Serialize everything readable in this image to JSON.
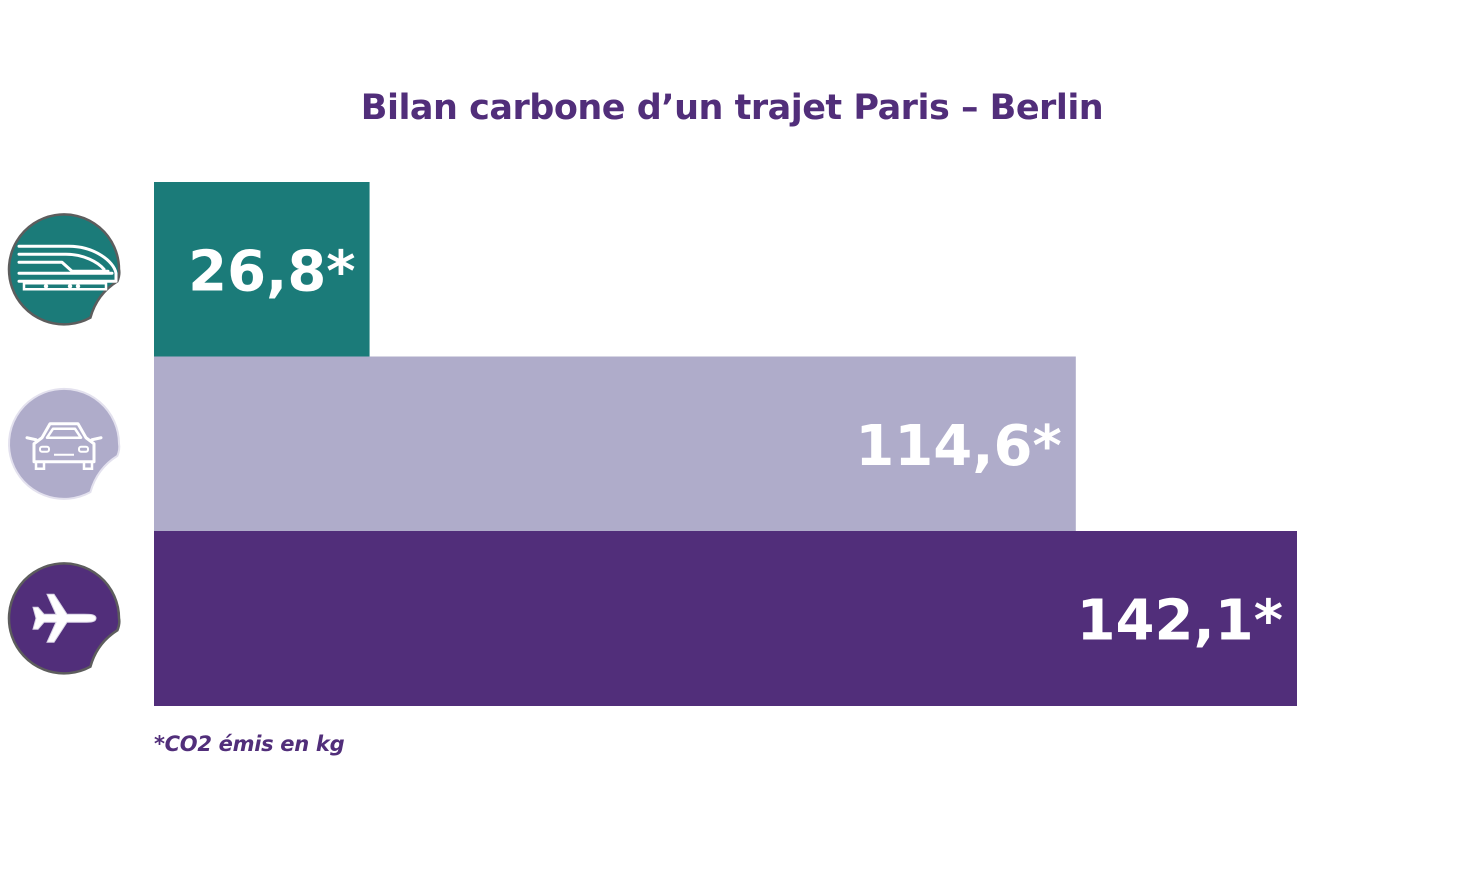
{
  "chart_data": {
    "type": "bar",
    "orientation": "horizontal",
    "title": "Bilan carbone d’un trajet Paris – Berlin",
    "categories": [
      "train",
      "car",
      "plane"
    ],
    "values": [
      26.8,
      114.6,
      142.1
    ],
    "value_labels": [
      "26,8*",
      "114,6*",
      "142,1*"
    ],
    "colors": [
      "#1b7b79",
      "#afacca",
      "#512e7a"
    ],
    "icons": [
      "train-icon",
      "car-icon",
      "plane-icon"
    ],
    "footnote": "*CO2 émis en kg",
    "xlim": [
      0,
      142.1
    ],
    "grid": false,
    "legend": "none"
  },
  "colors": {
    "title": "#512e7a",
    "label": "#ffffff",
    "icon_border": "#5d5d5d"
  }
}
